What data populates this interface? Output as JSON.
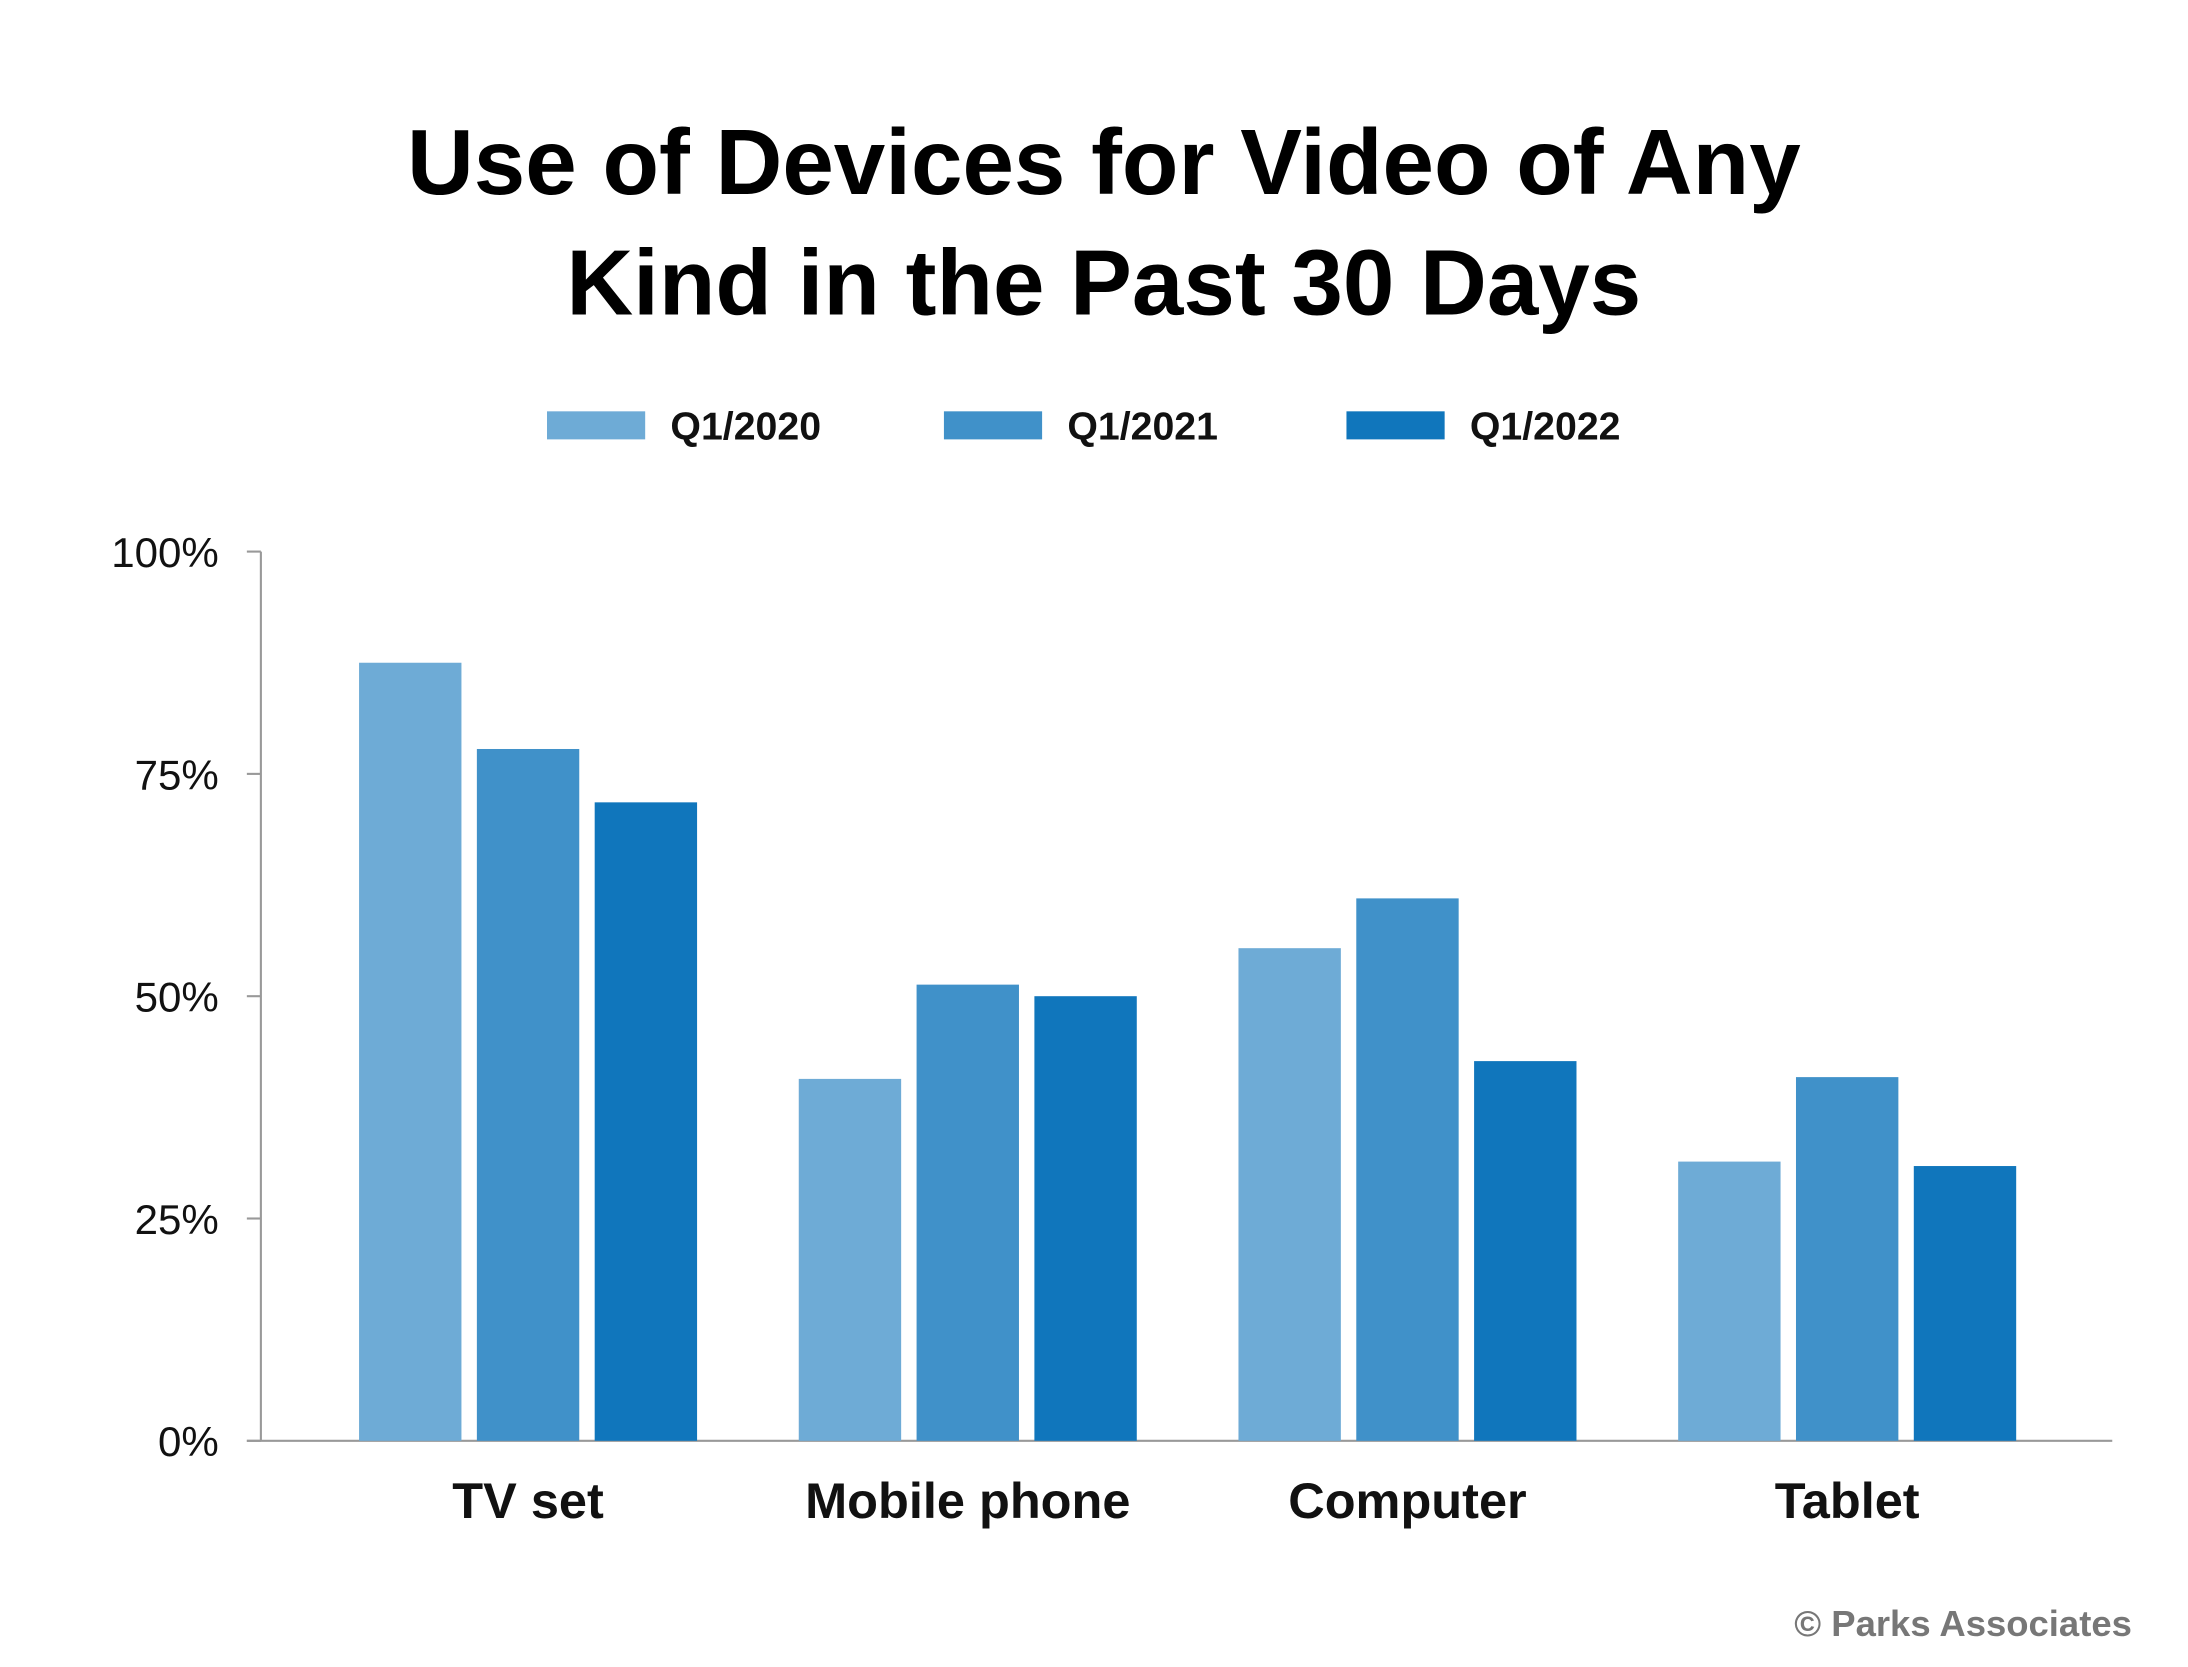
{
  "chart_data": {
    "type": "bar",
    "title_lines": [
      "Use of Devices for Video of Any",
      "Kind in the Past 30 Days"
    ],
    "categories": [
      "TV set",
      "Mobile phone",
      "Computer",
      "Tablet"
    ],
    "series": [
      {
        "name": "Q1/2020",
        "color": "#6eabd6",
        "values": [
          87.5,
          40.7,
          55.4,
          31.4
        ]
      },
      {
        "name": "Q1/2021",
        "color": "#4091c9",
        "values": [
          77.8,
          51.3,
          61.0,
          40.9
        ]
      },
      {
        "name": "Q1/2022",
        "color": "#1076bc",
        "values": [
          71.8,
          50.0,
          42.7,
          30.9
        ]
      }
    ],
    "ylim": [
      0,
      100
    ],
    "yticks": [
      0,
      25,
      50,
      75,
      100
    ],
    "ytick_labels": [
      "0%",
      "25%",
      "50%",
      "75%",
      "100%"
    ],
    "xlabel": "",
    "ylabel": "",
    "grid": false,
    "legend_position": "top-center"
  },
  "credit": "© Parks Associates"
}
